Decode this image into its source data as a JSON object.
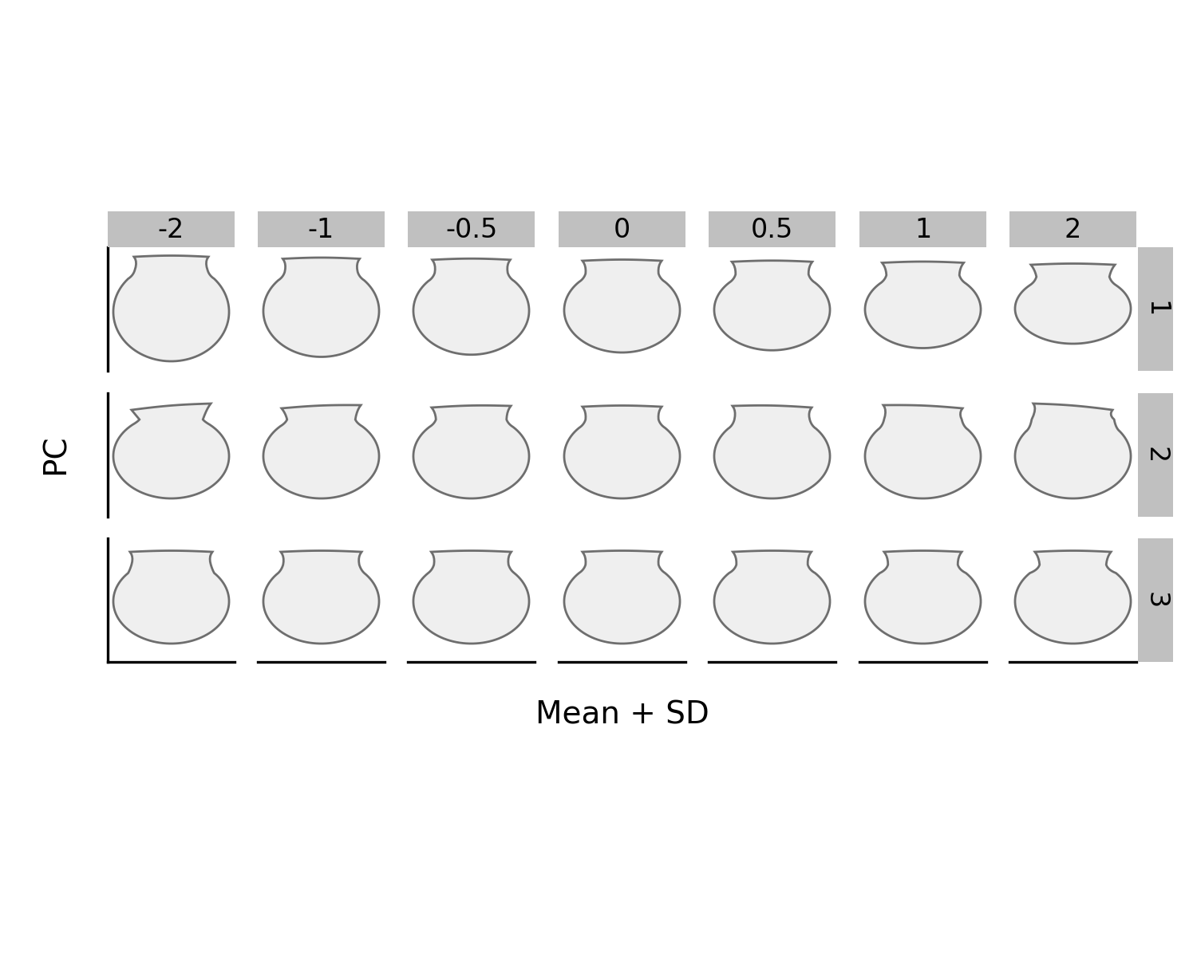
{
  "chart_data": {
    "type": "shape_grid",
    "xlabel": "Mean + SD",
    "ylabel": "PC",
    "columns": [
      -2,
      -1,
      -0.5,
      0,
      0.5,
      1,
      2
    ],
    "rows": [
      1,
      2,
      3
    ],
    "tick_labels": false
  }
}
